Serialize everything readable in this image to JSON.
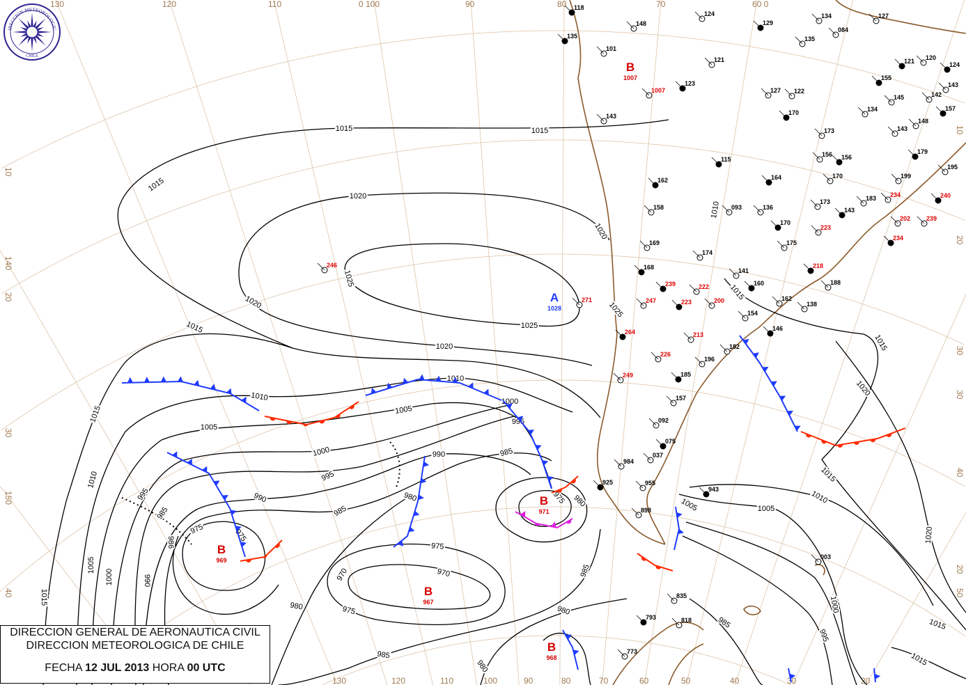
{
  "title_box": {
    "line1": "DIRECCION GENERAL DE AERONAUTICA CIVIL",
    "line2": "DIRECCION METEOROLOGICA DE CHILE",
    "date_prefix": "FECHA",
    "date": "12 JUL 2013",
    "time_prefix": "HORA",
    "time": "00 UTC"
  },
  "logo": {
    "ring_text": "DIRECCION METEOROLOGICA",
    "country": "CHILE"
  },
  "grid_labels": {
    "top": [
      "130",
      "120",
      "110",
      "0 100",
      "90",
      "80",
      "70",
      "60 0"
    ],
    "bottom": [
      "130",
      "120",
      "110",
      "100",
      "90",
      "80",
      "70",
      "60",
      "50",
      "40",
      "30",
      "20"
    ],
    "left": [
      "10",
      "140",
      "20",
      "30",
      "150",
      "40"
    ],
    "right": [
      "10",
      "20",
      "30",
      "30",
      "40",
      "20",
      "50"
    ]
  },
  "isobar_labels": [
    "1015",
    "1015",
    "1015",
    "1015",
    "1015",
    "1015",
    "1015",
    "1015",
    "1015",
    "1015",
    "1015",
    "1020",
    "1020",
    "1020",
    "1020",
    "1020",
    "1020",
    "1025",
    "1025",
    "1025",
    "1010",
    "1010",
    "1010",
    "1010",
    "1010",
    "1005",
    "1005",
    "1005",
    "1005",
    "1005",
    "1000",
    "1000",
    "1000",
    "1000",
    "995",
    "995",
    "995",
    "995",
    "990",
    "990",
    "990",
    "985",
    "985",
    "985",
    "985",
    "985",
    "985",
    "980",
    "980",
    "980",
    "980",
    "980",
    "975",
    "975",
    "975",
    "975",
    "975",
    "970",
    "970",
    "986"
  ],
  "pressure_centers": [
    {
      "symbol": "B",
      "value": "969",
      "type": "low"
    },
    {
      "symbol": "B",
      "value": "971",
      "type": "low"
    },
    {
      "symbol": "B",
      "value": "967",
      "type": "low"
    },
    {
      "symbol": "B",
      "value": "968",
      "type": "low"
    },
    {
      "symbol": "A",
      "value": "1028",
      "type": "high"
    },
    {
      "symbol": "B",
      "value": "1007",
      "type": "low"
    }
  ],
  "fronts": [
    {
      "type": "cold"
    },
    {
      "type": "warm"
    },
    {
      "type": "cold"
    },
    {
      "type": "cold"
    },
    {
      "type": "cold"
    },
    {
      "type": "warm"
    },
    {
      "type": "cold"
    },
    {
      "type": "occluded"
    },
    {
      "type": "warm"
    },
    {
      "type": "cold"
    },
    {
      "type": "warm"
    },
    {
      "type": "cold"
    },
    {
      "type": "warm"
    },
    {
      "type": "cold"
    },
    {
      "type": "cold"
    },
    {
      "type": "cold"
    }
  ],
  "stations_black": [
    "118",
    "148",
    "124",
    "129",
    "134",
    "127",
    "135",
    "101",
    "121",
    "123",
    "122",
    "127",
    "170",
    "143",
    "173",
    "162",
    "158",
    "169",
    "168",
    "174",
    "141",
    "160",
    "162",
    "154",
    "146",
    "182",
    "196",
    "185",
    "157",
    "092",
    "075",
    "037",
    "984",
    "925",
    "955",
    "898",
    "943",
    "003",
    "835",
    "793",
    "818",
    "773",
    "164",
    "093",
    "136",
    "170",
    "175",
    "156",
    "156",
    "170",
    "173",
    "143",
    "183",
    "199",
    "179",
    "195",
    "148",
    "157",
    "143",
    "134",
    "155",
    "142",
    "120",
    "124",
    "143",
    "145",
    "121",
    "084",
    "135",
    "115",
    "188",
    "138"
  ],
  "stations_red": [
    "246",
    "271",
    "239",
    "222",
    "247",
    "223",
    "200",
    "213",
    "264",
    "226",
    "249",
    "218",
    "223",
    "234",
    "240",
    "202",
    "239",
    "234",
    "1007"
  ],
  "colors": {
    "cold_front": "#1f3bff",
    "warm_front": "#ff2a00",
    "occluded_front": "#e020e0",
    "coastline": "#8b5a2b",
    "grid": "#dcc4ab",
    "low_center": "#d40000",
    "high_center": "#1f3bff"
  }
}
